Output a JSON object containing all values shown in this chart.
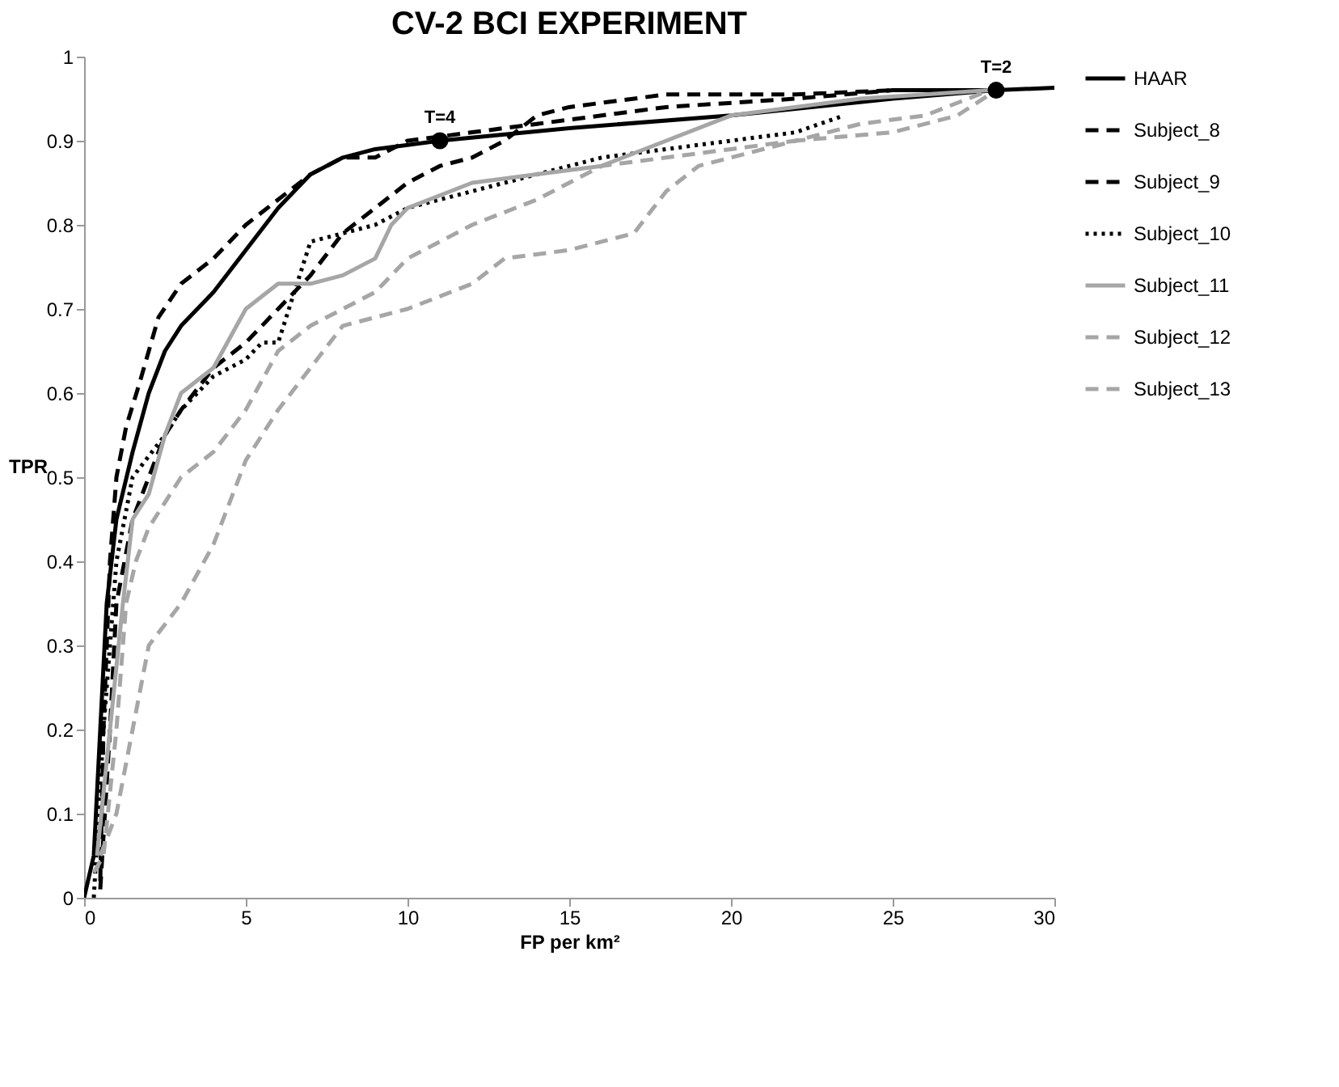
{
  "chart_data": {
    "type": "line",
    "title": "CV-2 BCI EXPERIMENT",
    "xlabel": "FP per km²",
    "ylabel": "TPR",
    "xlim": [
      0,
      30
    ],
    "xticks": [
      0,
      5,
      10,
      15,
      20,
      25,
      30
    ],
    "ylim": [
      0,
      1
    ],
    "yticks": [
      0,
      0.1,
      0.2,
      0.3,
      0.4,
      0.5,
      0.6,
      0.7,
      0.8,
      0.9,
      1
    ],
    "grid": false,
    "legend": "right",
    "marker": "none",
    "annotations": [
      {
        "text": "T=4",
        "x": 11,
        "y": 0.9
      },
      {
        "text": "T=2",
        "x": 28.2,
        "y": 0.96
      }
    ],
    "series": [
      {
        "name": "HAAR",
        "color": "#000000",
        "line_style": "solid",
        "x": [
          0,
          0.3,
          0.5,
          0.7,
          1,
          1.5,
          2,
          2.5,
          3,
          4,
          5,
          6,
          7,
          8,
          9,
          11,
          15,
          20,
          25,
          28.2,
          30
        ],
        "values": [
          0,
          0.05,
          0.2,
          0.35,
          0.45,
          0.53,
          0.6,
          0.65,
          0.68,
          0.72,
          0.77,
          0.82,
          0.86,
          0.88,
          0.89,
          0.9,
          0.915,
          0.93,
          0.95,
          0.96,
          0.963
        ]
      },
      {
        "name": "Subject_8",
        "color": "#000000",
        "line_style": "dashed",
        "x": [
          0.5,
          0.6,
          0.8,
          1,
          1.3,
          1.7,
          2,
          2.3,
          3,
          4,
          5,
          6,
          7,
          8,
          9,
          10,
          12,
          14,
          18,
          22,
          25,
          28
        ],
        "values": [
          0.02,
          0.2,
          0.4,
          0.5,
          0.56,
          0.61,
          0.65,
          0.69,
          0.73,
          0.76,
          0.8,
          0.83,
          0.86,
          0.88,
          0.88,
          0.9,
          0.91,
          0.92,
          0.94,
          0.95,
          0.96,
          0.96
        ]
      },
      {
        "name": "Subject_9",
        "color": "#000000",
        "line_style": "dashed",
        "x": [
          0.5,
          0.8,
          1,
          1.5,
          2,
          2.5,
          3,
          4,
          5,
          6,
          7,
          8,
          9,
          10,
          11,
          12,
          13,
          14,
          15,
          18,
          22,
          25,
          28
        ],
        "values": [
          0.01,
          0.2,
          0.35,
          0.45,
          0.5,
          0.55,
          0.58,
          0.63,
          0.66,
          0.7,
          0.74,
          0.79,
          0.82,
          0.85,
          0.87,
          0.88,
          0.9,
          0.93,
          0.94,
          0.955,
          0.955,
          0.96,
          0.96
        ]
      },
      {
        "name": "Subject_10",
        "color": "#000000",
        "line_style": "dotted",
        "x": [
          0.3,
          0.6,
          1,
          1.5,
          2.5,
          3,
          4,
          5,
          5.5,
          6,
          6.5,
          7,
          8,
          9,
          10,
          12,
          14,
          16,
          18,
          20,
          22,
          23.5
        ],
        "values": [
          0,
          0.2,
          0.4,
          0.5,
          0.55,
          0.58,
          0.62,
          0.64,
          0.66,
          0.66,
          0.72,
          0.78,
          0.79,
          0.8,
          0.82,
          0.84,
          0.86,
          0.88,
          0.89,
          0.9,
          0.91,
          0.93
        ]
      },
      {
        "name": "Subject_11",
        "color": "#a6a6a6",
        "line_style": "solid",
        "x": [
          0.4,
          0.8,
          1.2,
          1.5,
          2,
          2.5,
          3,
          4,
          5,
          6,
          7,
          8,
          9,
          9.5,
          10,
          12,
          14,
          16,
          18,
          20,
          24,
          28
        ],
        "values": [
          0.05,
          0.2,
          0.35,
          0.45,
          0.48,
          0.55,
          0.6,
          0.63,
          0.7,
          0.73,
          0.73,
          0.74,
          0.76,
          0.8,
          0.82,
          0.85,
          0.86,
          0.87,
          0.9,
          0.93,
          0.95,
          0.96
        ]
      },
      {
        "name": "Subject_12",
        "color": "#a6a6a6",
        "line_style": "dashed",
        "x": [
          0.5,
          1,
          1.5,
          2,
          3,
          4,
          5,
          6,
          7,
          8,
          10,
          12,
          13,
          15,
          17,
          18,
          19,
          22,
          25,
          27,
          28.2
        ],
        "values": [
          0.05,
          0.1,
          0.2,
          0.3,
          0.35,
          0.42,
          0.52,
          0.58,
          0.63,
          0.68,
          0.7,
          0.73,
          0.76,
          0.77,
          0.79,
          0.84,
          0.87,
          0.9,
          0.91,
          0.93,
          0.96
        ]
      },
      {
        "name": "Subject_13",
        "color": "#a6a6a6",
        "line_style": "dashed",
        "x": [
          0.3,
          0.6,
          1,
          1.3,
          1.6,
          2,
          3,
          4,
          5,
          6,
          7,
          8,
          9,
          10,
          11,
          12,
          14,
          15,
          16,
          18,
          20,
          22,
          24,
          26,
          28
        ],
        "values": [
          0.03,
          0.05,
          0.2,
          0.35,
          0.4,
          0.44,
          0.5,
          0.53,
          0.58,
          0.65,
          0.68,
          0.7,
          0.72,
          0.76,
          0.78,
          0.8,
          0.83,
          0.85,
          0.87,
          0.88,
          0.89,
          0.9,
          0.92,
          0.93,
          0.96
        ]
      },
      {
        "type": "scatter",
        "color": "#000000",
        "marker": "circle",
        "x": [
          11,
          28.2
        ],
        "values": [
          0.9,
          0.96
        ]
      }
    ]
  }
}
